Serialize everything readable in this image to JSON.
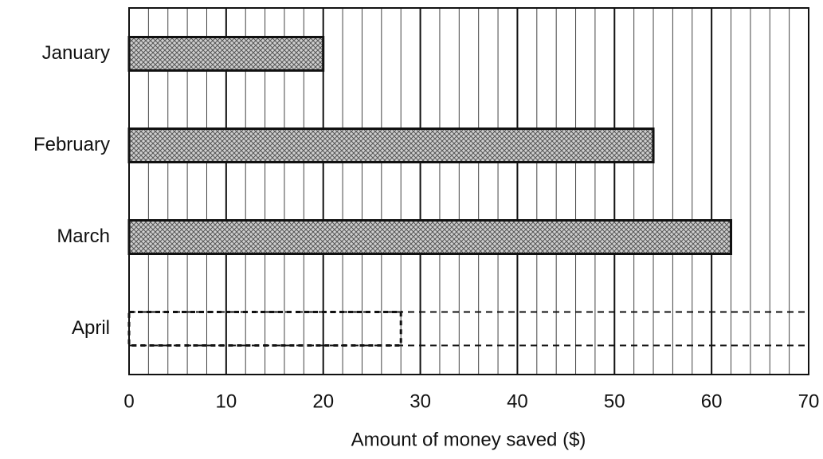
{
  "chart_data": {
    "type": "bar",
    "orientation": "horizontal",
    "categories": [
      "January",
      "February",
      "March",
      "April"
    ],
    "values": [
      20,
      54,
      62,
      28
    ],
    "patterns": [
      "crosshatch",
      "crosshatch",
      "crosshatch",
      "dashed-outline"
    ],
    "xlabel": "Amount of money saved ($)",
    "xlim": [
      0,
      70
    ],
    "xticks": [
      0,
      10,
      20,
      30,
      40,
      50,
      60,
      70
    ],
    "grid": true,
    "minor_grid_step": 2
  }
}
